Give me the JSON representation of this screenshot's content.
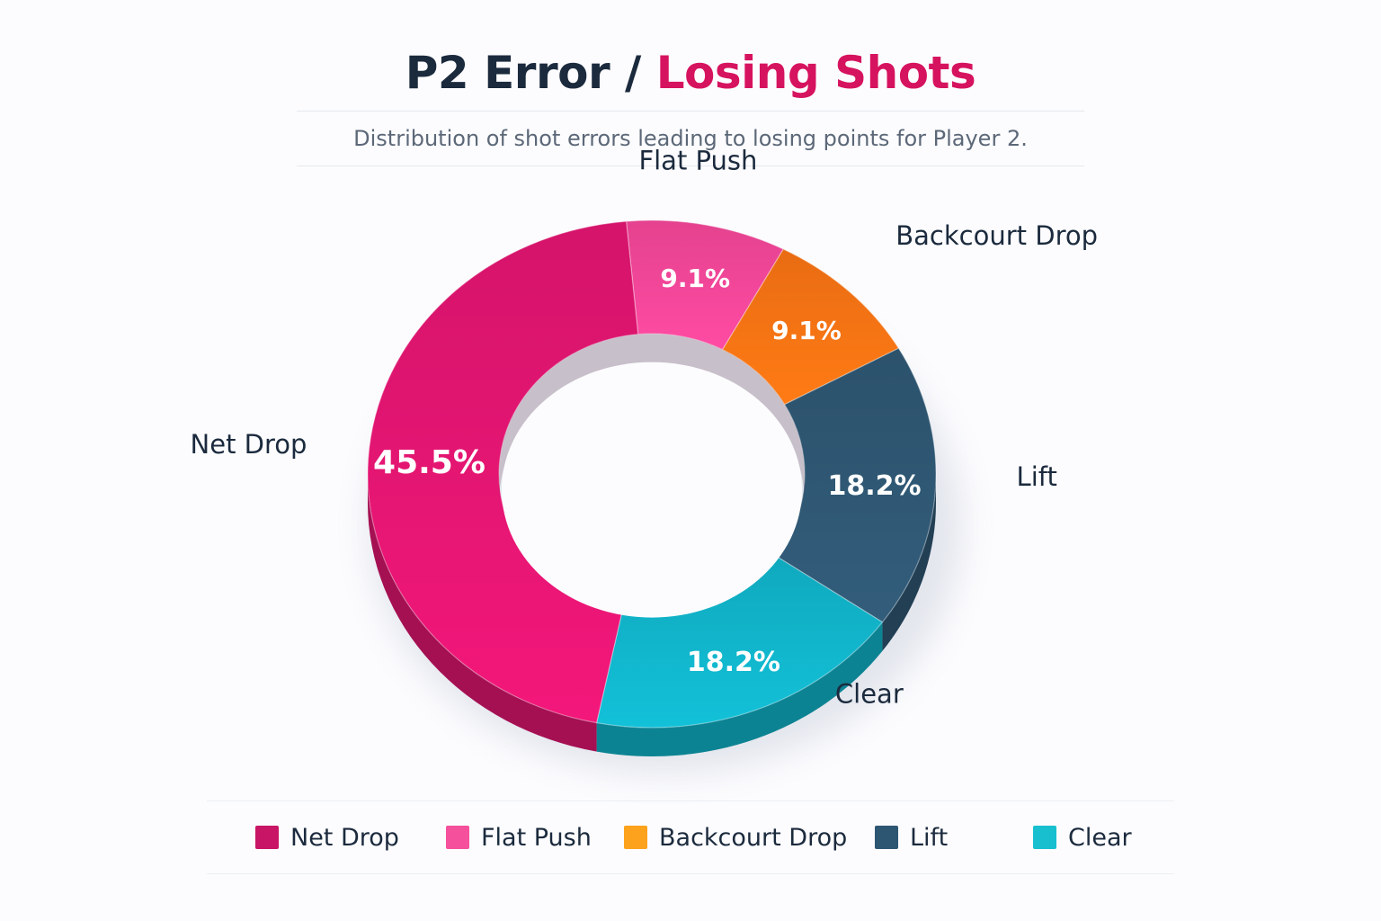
{
  "title": {
    "part1": "P2 Error / ",
    "part2": "Losing Shots"
  },
  "subtitle": "Distribution of shot errors leading to losing points for Player 2.",
  "chart_data": {
    "type": "pie",
    "variant": "donut",
    "title": "P2 Error / Losing Shots",
    "subtitle": "Distribution of shot errors leading to losing points for Player 2.",
    "legend_position": "bottom",
    "slices": [
      {
        "label": "Flat Push",
        "value": 9.1,
        "display": "9.1%",
        "color": "#f5479a",
        "legend_color": "#f5509c"
      },
      {
        "label": "Backcourt Drop",
        "value": 9.1,
        "display": "9.1%",
        "color": "#fb7414",
        "legend_color": "#fca21c"
      },
      {
        "label": "Lift",
        "value": 18.2,
        "display": "18.2%",
        "color": "#2f5874",
        "legend_color": "#2d5673"
      },
      {
        "label": "Clear",
        "value": 18.2,
        "display": "18.2%",
        "color": "#11b6cc",
        "legend_color": "#17bfcf"
      },
      {
        "label": "Net Drop",
        "value": 45.5,
        "display": "45.5%",
        "color": "#e51673",
        "legend_color": "#c81565"
      }
    ]
  }
}
